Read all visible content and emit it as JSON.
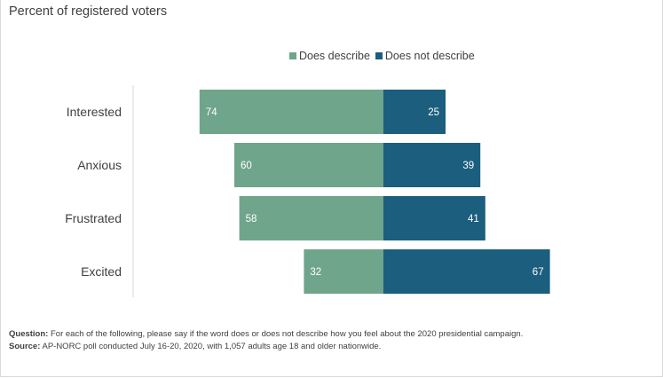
{
  "subtitle": "Percent of registered voters",
  "colors": {
    "describe": "#6fa58a",
    "not_describe": "#1b5e7e"
  },
  "chart_data": {
    "type": "bar",
    "orientation": "horizontal-diverging",
    "categories": [
      "Interested",
      "Anxious",
      "Frustrated",
      "Excited"
    ],
    "series": [
      {
        "name": "Does describe",
        "values": [
          74,
          60,
          58,
          32
        ]
      },
      {
        "name": "Does not describe",
        "values": [
          25,
          39,
          41,
          67
        ]
      }
    ],
    "legend": "top-center",
    "grid": false
  },
  "notes": {
    "question_label": "Question:",
    "question_text": " For each of the following, please say if the word does or does not describe how you feel about the 2020 presidential campaign.",
    "source_label": "Source:",
    "source_text": " AP-NORC poll conducted July 16-20, 2020, with 1,057 adults age 18 and older nationwide."
  }
}
